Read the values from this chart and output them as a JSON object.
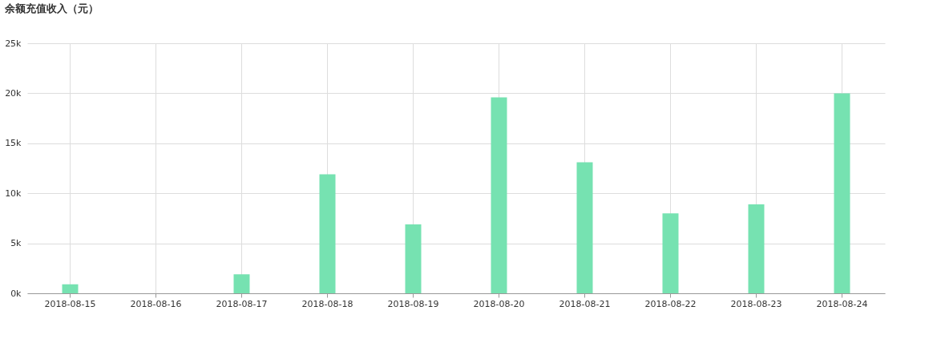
{
  "chart_data": {
    "type": "bar",
    "title": "余额充值收入（元）",
    "categories": [
      "2018-08-15",
      "2018-08-16",
      "2018-08-17",
      "2018-08-18",
      "2018-08-19",
      "2018-08-20",
      "2018-08-21",
      "2018-08-22",
      "2018-08-23",
      "2018-08-24"
    ],
    "series": [
      {
        "color": "#76e2b1",
        "values": [
          900,
          0,
          1900,
          11900,
          6900,
          19600,
          13100,
          8000,
          8900,
          20000
        ]
      }
    ],
    "ylim": [
      0,
      25000
    ],
    "yticks": [
      {
        "value": 0,
        "label": "0k"
      },
      {
        "value": 5000,
        "label": "5k"
      },
      {
        "value": 10000,
        "label": "10k"
      },
      {
        "value": 15000,
        "label": "15k"
      },
      {
        "value": 20000,
        "label": "20k"
      },
      {
        "value": 25000,
        "label": "25k"
      }
    ],
    "grid": true
  }
}
